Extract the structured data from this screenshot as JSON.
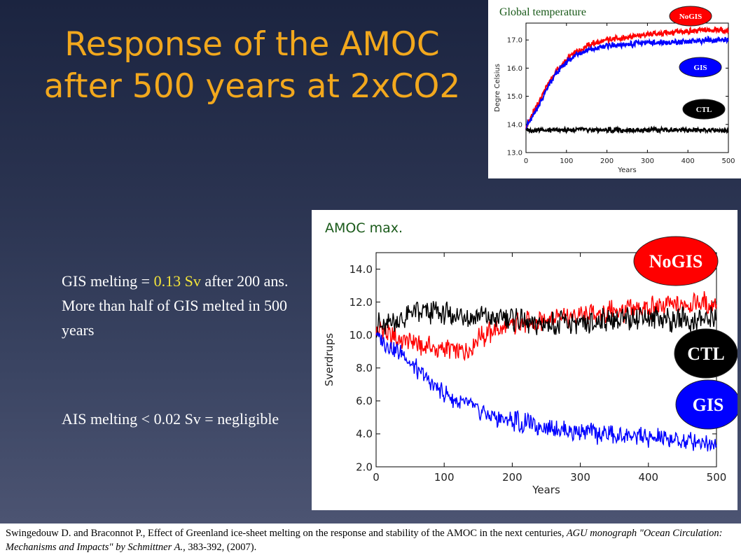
{
  "slide": {
    "title_lines": [
      "Response of the AMOC",
      "after 500 years at 2xCO2"
    ],
    "bullets": [
      {
        "mark": "",
        "pre": "GIS melting = ",
        "highlight": "0.13 Sv",
        "post": " after 200 ans. More than half of GIS melted in 500 years"
      },
      {
        "mark": "",
        "pre": "AIS melting < 0.02 Sv = negligible",
        "highlight": "",
        "post": ""
      }
    ],
    "citation": {
      "plain": "Swingedouw D. and Braconnot P., Effect of Greenland ice-sheet melting on the response and stability of the AMOC in the next centuries,",
      "italic": " AGU monograph \"Ocean Circulation: Mechanisms and Impacts\" by Schmittner A.",
      "tail": ", 383-392, (2007)."
    },
    "colors": {
      "title": "#f2a81d",
      "highlight": "#f5e63a",
      "nogis": "#ff0000",
      "gis": "#0000ff",
      "ctl": "#000000"
    }
  },
  "chart_data": [
    {
      "type": "line",
      "title": "Global temperature",
      "xlabel": "Years",
      "ylabel": "Degre Celsius",
      "xlim": [
        0,
        500
      ],
      "ylim": [
        13.0,
        17.6
      ],
      "xticks": [
        "0",
        "100",
        "200",
        "300",
        "400",
        "500"
      ],
      "yticks": [
        "13.0",
        "14.0",
        "15.0",
        "16.0",
        "17.0"
      ],
      "legend": [
        "NoGIS",
        "GIS",
        "CTL"
      ],
      "series": [
        {
          "name": "NoGIS",
          "color": "#ff0000",
          "x": [
            0,
            25,
            50,
            75,
            100,
            125,
            150,
            175,
            200,
            250,
            300,
            350,
            400,
            450,
            500
          ],
          "y": [
            13.9,
            14.6,
            15.3,
            15.9,
            16.3,
            16.6,
            16.8,
            16.9,
            17.0,
            17.1,
            17.2,
            17.25,
            17.3,
            17.35,
            17.35
          ]
        },
        {
          "name": "GIS",
          "color": "#0000ff",
          "x": [
            0,
            25,
            50,
            75,
            100,
            125,
            150,
            175,
            200,
            250,
            300,
            350,
            400,
            450,
            500
          ],
          "y": [
            13.9,
            14.5,
            15.2,
            15.8,
            16.2,
            16.5,
            16.6,
            16.7,
            16.8,
            16.85,
            16.9,
            16.9,
            16.95,
            17.0,
            17.0
          ]
        },
        {
          "name": "CTL",
          "color": "#000000",
          "x": [
            0,
            100,
            200,
            300,
            400,
            500
          ],
          "y": [
            13.8,
            13.8,
            13.8,
            13.8,
            13.8,
            13.8
          ]
        }
      ]
    },
    {
      "type": "line",
      "title": "AMOC max.",
      "xlabel": "Years",
      "ylabel": "Sverdrups",
      "xlim": [
        0,
        500
      ],
      "ylim": [
        2.0,
        15.0
      ],
      "xticks": [
        "0",
        "100",
        "200",
        "300",
        "400",
        "500"
      ],
      "yticks": [
        "2.0",
        "4.0",
        "6.0",
        "8.0",
        "10.0",
        "12.0",
        "14.0"
      ],
      "legend": [
        "NoGIS",
        "CTL",
        "GIS"
      ],
      "series": [
        {
          "name": "NoGIS",
          "color": "#ff0000",
          "x": [
            0,
            25,
            50,
            75,
            100,
            125,
            150,
            175,
            200,
            250,
            300,
            350,
            400,
            450,
            500
          ],
          "y": [
            10.5,
            9.8,
            9.5,
            9.3,
            9.2,
            9.0,
            9.8,
            10.3,
            10.6,
            11.0,
            11.2,
            11.4,
            11.6,
            11.8,
            12.0
          ]
        },
        {
          "name": "CTL",
          "color": "#000000",
          "x": [
            0,
            50,
            100,
            150,
            200,
            250,
            300,
            350,
            400,
            450,
            500
          ],
          "y": [
            10.5,
            11.2,
            11.3,
            11.0,
            11.0,
            10.7,
            10.6,
            10.9,
            11.1,
            10.9,
            11.0
          ]
        },
        {
          "name": "GIS",
          "color": "#0000ff",
          "x": [
            0,
            25,
            50,
            75,
            100,
            125,
            150,
            175,
            200,
            250,
            300,
            350,
            400,
            450,
            500
          ],
          "y": [
            10.0,
            9.2,
            8.4,
            7.3,
            6.4,
            5.8,
            5.4,
            5.0,
            4.8,
            4.4,
            4.1,
            3.9,
            3.8,
            3.6,
            3.5
          ]
        }
      ]
    }
  ]
}
